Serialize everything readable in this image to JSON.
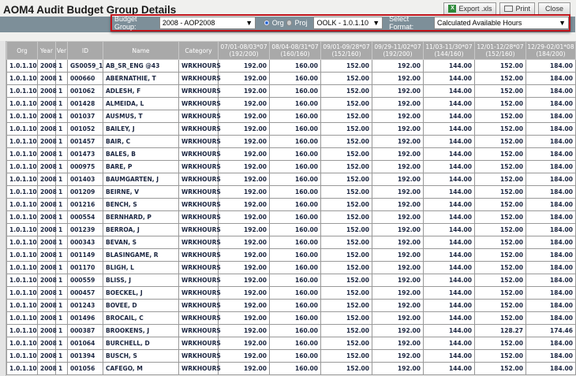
{
  "title": "AOM4 Audit Budget Group Details",
  "buttons": {
    "export": "Export .xls",
    "print": "Print",
    "close": "Close"
  },
  "filters": {
    "budget_group_label": "Budget Group:",
    "budget_group_value": "2008 - AOP2008",
    "org_label": "Org",
    "proj_label": "Proj",
    "org_selected": true,
    "org_value": "OOLK - 1.0.1.10",
    "format_label": "Select Format:",
    "format_value": "Calculated Available Hours"
  },
  "columns": [
    "Org",
    "Year",
    "Ver",
    "ID",
    "Name",
    "Category",
    "07/01-08/03*07 (192/200)",
    "08/04-08/31*07 (160/160)",
    "09/01-09/28*07 (152/160)",
    "09/29-11/02*07 (192/200)",
    "11/03-11/30*07 (144/160)",
    "12/01-12/28*07 (152/160)",
    "12/29-02/01*08 (184/200)"
  ],
  "rows": [
    [
      "1.0.1.10",
      "2008",
      "1",
      "GS0059_1",
      "AB_SR_ENG @43",
      "WRKHOURS",
      "192.00",
      "160.00",
      "152.00",
      "192.00",
      "144.00",
      "152.00",
      "184.00"
    ],
    [
      "1.0.1.10",
      "2008",
      "1",
      "000660",
      "ABERNATHIE, T",
      "WRKHOURS",
      "192.00",
      "160.00",
      "152.00",
      "192.00",
      "144.00",
      "152.00",
      "184.00"
    ],
    [
      "1.0.1.10",
      "2008",
      "1",
      "001062",
      "ADLESH, F",
      "WRKHOURS",
      "192.00",
      "160.00",
      "152.00",
      "192.00",
      "144.00",
      "152.00",
      "184.00"
    ],
    [
      "1.0.1.10",
      "2008",
      "1",
      "001428",
      "ALMEIDA, L",
      "WRKHOURS",
      "192.00",
      "160.00",
      "152.00",
      "192.00",
      "144.00",
      "152.00",
      "184.00"
    ],
    [
      "1.0.1.10",
      "2008",
      "1",
      "001037",
      "AUSMUS, T",
      "WRKHOURS",
      "192.00",
      "160.00",
      "152.00",
      "192.00",
      "144.00",
      "152.00",
      "184.00"
    ],
    [
      "1.0.1.10",
      "2008",
      "1",
      "001052",
      "BAILEY, J",
      "WRKHOURS",
      "192.00",
      "160.00",
      "152.00",
      "192.00",
      "144.00",
      "152.00",
      "184.00"
    ],
    [
      "1.0.1.10",
      "2008",
      "1",
      "001457",
      "BAIR, C",
      "WRKHOURS",
      "192.00",
      "160.00",
      "152.00",
      "192.00",
      "144.00",
      "152.00",
      "184.00"
    ],
    [
      "1.0.1.10",
      "2008",
      "1",
      "001473",
      "BALES, B",
      "WRKHOURS",
      "192.00",
      "160.00",
      "152.00",
      "192.00",
      "144.00",
      "152.00",
      "184.00"
    ],
    [
      "1.0.1.10",
      "2008",
      "1",
      "000975",
      "BARE, P",
      "WRKHOURS",
      "192.00",
      "160.00",
      "152.00",
      "192.00",
      "144.00",
      "152.00",
      "184.00"
    ],
    [
      "1.0.1.10",
      "2008",
      "1",
      "001403",
      "BAUMGARTEN, J",
      "WRKHOURS",
      "192.00",
      "160.00",
      "152.00",
      "192.00",
      "144.00",
      "152.00",
      "184.00"
    ],
    [
      "1.0.1.10",
      "2008",
      "1",
      "001209",
      "BEIRNE, V",
      "WRKHOURS",
      "192.00",
      "160.00",
      "152.00",
      "192.00",
      "144.00",
      "152.00",
      "184.00"
    ],
    [
      "1.0.1.10",
      "2008",
      "1",
      "001216",
      "BENCH, S",
      "WRKHOURS",
      "192.00",
      "160.00",
      "152.00",
      "192.00",
      "144.00",
      "152.00",
      "184.00"
    ],
    [
      "1.0.1.10",
      "2008",
      "1",
      "000554",
      "BERNHARD, P",
      "WRKHOURS",
      "192.00",
      "160.00",
      "152.00",
      "192.00",
      "144.00",
      "152.00",
      "184.00"
    ],
    [
      "1.0.1.10",
      "2008",
      "1",
      "001239",
      "BERROA, J",
      "WRKHOURS",
      "192.00",
      "160.00",
      "152.00",
      "192.00",
      "144.00",
      "152.00",
      "184.00"
    ],
    [
      "1.0.1.10",
      "2008",
      "1",
      "000343",
      "BEVAN, S",
      "WRKHOURS",
      "192.00",
      "160.00",
      "152.00",
      "192.00",
      "144.00",
      "152.00",
      "184.00"
    ],
    [
      "1.0.1.10",
      "2008",
      "1",
      "001149",
      "BLASINGAME, R",
      "WRKHOURS",
      "192.00",
      "160.00",
      "152.00",
      "192.00",
      "144.00",
      "152.00",
      "184.00"
    ],
    [
      "1.0.1.10",
      "2008",
      "1",
      "001170",
      "BLIGH, L",
      "WRKHOURS",
      "192.00",
      "160.00",
      "152.00",
      "192.00",
      "144.00",
      "152.00",
      "184.00"
    ],
    [
      "1.0.1.10",
      "2008",
      "1",
      "000559",
      "BLISS, J",
      "WRKHOURS",
      "192.00",
      "160.00",
      "152.00",
      "192.00",
      "144.00",
      "152.00",
      "184.00"
    ],
    [
      "1.0.1.10",
      "2008",
      "1",
      "000457",
      "BOECKEL, J",
      "WRKHOURS",
      "192.00",
      "160.00",
      "152.00",
      "192.00",
      "144.00",
      "152.00",
      "184.00"
    ],
    [
      "1.0.1.10",
      "2008",
      "1",
      "001243",
      "BOVEE, D",
      "WRKHOURS",
      "192.00",
      "160.00",
      "152.00",
      "192.00",
      "144.00",
      "152.00",
      "184.00"
    ],
    [
      "1.0.1.10",
      "2008",
      "1",
      "001496",
      "BROCAIL, C",
      "WRKHOURS",
      "192.00",
      "160.00",
      "152.00",
      "192.00",
      "144.00",
      "152.00",
      "184.00"
    ],
    [
      "1.0.1.10",
      "2008",
      "1",
      "000387",
      "BROOKENS, J",
      "WRKHOURS",
      "192.00",
      "160.00",
      "152.00",
      "192.00",
      "144.00",
      "128.27",
      "174.46"
    ],
    [
      "1.0.1.10",
      "2008",
      "1",
      "001064",
      "BURCHELL, D",
      "WRKHOURS",
      "192.00",
      "160.00",
      "152.00",
      "192.00",
      "144.00",
      "152.00",
      "184.00"
    ],
    [
      "1.0.1.10",
      "2008",
      "1",
      "001394",
      "BUSCH, S",
      "WRKHOURS",
      "192.00",
      "160.00",
      "152.00",
      "192.00",
      "144.00",
      "152.00",
      "184.00"
    ],
    [
      "1.0.1.10",
      "2008",
      "1",
      "001056",
      "CAFEGO, M",
      "WRKHOURS",
      "192.00",
      "160.00",
      "152.00",
      "192.00",
      "144.00",
      "152.00",
      "184.00"
    ]
  ]
}
